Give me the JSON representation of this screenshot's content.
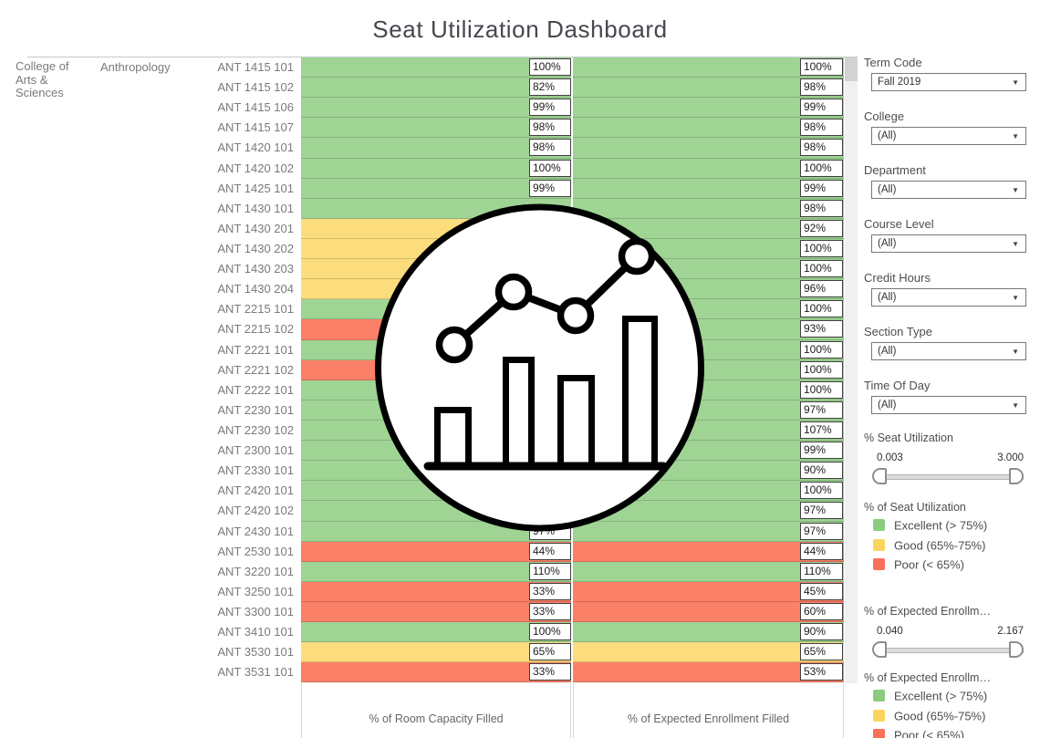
{
  "title": "Seat Utilization Dashboard",
  "palette": {
    "marks": {
      "excellent": "#9fd494",
      "good": "#fcdd7d",
      "poor": "#fb8068"
    },
    "legend": {
      "excellent": "#8ccb7f",
      "good": "#fbd560",
      "poor": "#f9705c"
    }
  },
  "table": {
    "college": "College of Arts & Sciences",
    "department": "Anthropology",
    "axis1": "% of Room Capacity Filled",
    "axis2": "% of Expected Enrollment Filled",
    "rows": [
      {
        "course": "ANT 1415 101",
        "room": {
          "value": "100%",
          "status": "excellent"
        },
        "enroll": {
          "value": "100%",
          "status": "excellent"
        }
      },
      {
        "course": "ANT 1415 102",
        "room": {
          "value": "82%",
          "status": "excellent"
        },
        "enroll": {
          "value": "98%",
          "status": "excellent"
        }
      },
      {
        "course": "ANT 1415 106",
        "room": {
          "value": "99%",
          "status": "excellent"
        },
        "enroll": {
          "value": "99%",
          "status": "excellent"
        }
      },
      {
        "course": "ANT 1415 107",
        "room": {
          "value": "98%",
          "status": "excellent"
        },
        "enroll": {
          "value": "98%",
          "status": "excellent"
        }
      },
      {
        "course": "ANT 1420 101",
        "room": {
          "value": "98%",
          "status": "excellent"
        },
        "enroll": {
          "value": "98%",
          "status": "excellent"
        }
      },
      {
        "course": "ANT 1420 102",
        "room": {
          "value": "100%",
          "status": "excellent"
        },
        "enroll": {
          "value": "100%",
          "status": "excellent"
        }
      },
      {
        "course": "ANT 1425 101",
        "room": {
          "value": "99%",
          "status": "excellent"
        },
        "enroll": {
          "value": "99%",
          "status": "excellent"
        }
      },
      {
        "course": "ANT 1430 101",
        "room": {
          "value": "",
          "status": "excellent"
        },
        "enroll": {
          "value": "98%",
          "status": "excellent"
        }
      },
      {
        "course": "ANT 1430 201",
        "room": {
          "value": "",
          "status": "good"
        },
        "enroll": {
          "value": "92%",
          "status": "excellent"
        }
      },
      {
        "course": "ANT 1430 202",
        "room": {
          "value": "",
          "status": "good"
        },
        "enroll": {
          "value": "100%",
          "status": "excellent"
        }
      },
      {
        "course": "ANT 1430 203",
        "room": {
          "value": "",
          "status": "good"
        },
        "enroll": {
          "value": "100%",
          "status": "excellent"
        }
      },
      {
        "course": "ANT 1430 204",
        "room": {
          "value": "",
          "status": "good"
        },
        "enroll": {
          "value": "96%",
          "status": "excellent"
        }
      },
      {
        "course": "ANT 2215 101",
        "room": {
          "value": "",
          "status": "excellent"
        },
        "enroll": {
          "value": "100%",
          "status": "excellent"
        }
      },
      {
        "course": "ANT 2215 102",
        "room": {
          "value": "",
          "status": "poor"
        },
        "enroll": {
          "value": "93%",
          "status": "excellent"
        }
      },
      {
        "course": "ANT 2221 101",
        "room": {
          "value": "",
          "status": "excellent"
        },
        "enroll": {
          "value": "100%",
          "status": "excellent"
        }
      },
      {
        "course": "ANT 2221 102",
        "room": {
          "value": "",
          "status": "poor"
        },
        "enroll": {
          "value": "100%",
          "status": "excellent"
        }
      },
      {
        "course": "ANT 2222 101",
        "room": {
          "value": "",
          "status": "excellent"
        },
        "enroll": {
          "value": "100%",
          "status": "excellent"
        }
      },
      {
        "course": "ANT 2230 101",
        "room": {
          "value": "",
          "status": "excellent"
        },
        "enroll": {
          "value": "97%",
          "status": "excellent"
        }
      },
      {
        "course": "ANT 2230 102",
        "room": {
          "value": "",
          "status": "excellent"
        },
        "enroll": {
          "value": "107%",
          "status": "excellent"
        }
      },
      {
        "course": "ANT 2300 101",
        "room": {
          "value": "",
          "status": "excellent"
        },
        "enroll": {
          "value": "99%",
          "status": "excellent"
        }
      },
      {
        "course": "ANT 2330 101",
        "room": {
          "value": "",
          "status": "excellent"
        },
        "enroll": {
          "value": "90%",
          "status": "excellent"
        }
      },
      {
        "course": "ANT 2420 101",
        "room": {
          "value": "",
          "status": "excellent"
        },
        "enroll": {
          "value": "100%",
          "status": "excellent"
        }
      },
      {
        "course": "ANT 2420 102",
        "room": {
          "value": "",
          "status": "excellent"
        },
        "enroll": {
          "value": "97%",
          "status": "excellent"
        }
      },
      {
        "course": "ANT 2430 101",
        "room": {
          "value": "97%",
          "status": "excellent"
        },
        "enroll": {
          "value": "97%",
          "status": "excellent"
        }
      },
      {
        "course": "ANT 2530 101",
        "room": {
          "value": "44%",
          "status": "poor"
        },
        "enroll": {
          "value": "44%",
          "status": "poor"
        }
      },
      {
        "course": "ANT 3220 101",
        "room": {
          "value": "110%",
          "status": "excellent"
        },
        "enroll": {
          "value": "110%",
          "status": "excellent"
        }
      },
      {
        "course": "ANT 3250 101",
        "room": {
          "value": "33%",
          "status": "poor"
        },
        "enroll": {
          "value": "45%",
          "status": "poor"
        }
      },
      {
        "course": "ANT 3300 101",
        "room": {
          "value": "33%",
          "status": "poor"
        },
        "enroll": {
          "value": "60%",
          "status": "poor"
        }
      },
      {
        "course": "ANT 3410 101",
        "room": {
          "value": "100%",
          "status": "excellent"
        },
        "enroll": {
          "value": "90%",
          "status": "excellent"
        }
      },
      {
        "course": "ANT 3530 101",
        "room": {
          "value": "65%",
          "status": "good"
        },
        "enroll": {
          "value": "65%",
          "status": "good"
        }
      },
      {
        "course": "ANT 3531 101",
        "room": {
          "value": "33%",
          "status": "poor"
        },
        "enroll": {
          "value": "53%",
          "status": "poor"
        }
      }
    ]
  },
  "filters": [
    {
      "label": "Term Code",
      "value": "Fall 2019",
      "caret": "▼"
    },
    {
      "label": "College",
      "value": "(All)",
      "caret": "▼"
    },
    {
      "label": "Department",
      "value": "(All)",
      "caret": "▼"
    },
    {
      "label": "Course Level",
      "value": "(All)",
      "caret": "▼"
    },
    {
      "label": "Credit Hours",
      "value": "(All)",
      "caret": "▼"
    },
    {
      "label": "Section Type",
      "value": "(All)",
      "caret": "▼"
    },
    {
      "label": "Time Of Day",
      "value": "(All)",
      "caret": "▼"
    }
  ],
  "sliders": [
    {
      "title": "% Seat Utilization",
      "min": "0.003",
      "max": "3.000"
    },
    {
      "title": "% of Expected Enrollm…",
      "min": "0.040",
      "max": "2.167"
    }
  ],
  "legends": [
    {
      "title": "% of Seat Utilization",
      "items": [
        {
          "label": "Excellent (> 75%)",
          "status": "excellent"
        },
        {
          "label": "Good (65%-75%)",
          "status": "good"
        },
        {
          "label": "Poor (< 65%)",
          "status": "poor"
        }
      ]
    },
    {
      "title": "% of Expected Enrollm…",
      "items": [
        {
          "label": "Excellent (> 75%)",
          "status": "excellent"
        },
        {
          "label": "Good (65%-75%)",
          "status": "good"
        },
        {
          "label": "Poor (< 65%)",
          "status": "poor"
        }
      ]
    }
  ]
}
